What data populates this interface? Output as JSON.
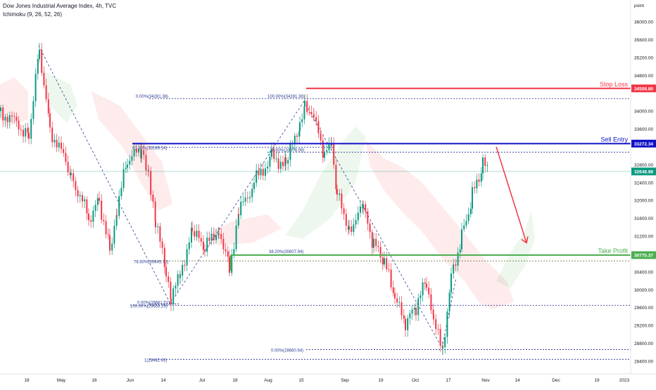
{
  "header": {
    "title": "Dow Jones Industrial Average Index, 4h, TVC",
    "indicator": "Ichimoku (9, 26, 52, 26)"
  },
  "chart_data": {
    "type": "candlestick",
    "price_axis": {
      "unit_label": "point",
      "ticks": [
        28400,
        28800,
        29200,
        29600,
        30000,
        30400,
        31200,
        31600,
        32000,
        32400,
        32800,
        33600,
        34000,
        34800,
        35200,
        35600,
        36000
      ],
      "tick_labels": [
        "28400.00",
        "28800.00",
        "29200.00",
        "29600.00",
        "30000.00",
        "30400.00",
        "31200.00",
        "31600.00",
        "32000.00",
        "32400.00",
        "32800.00",
        "33600.00",
        "34000.00",
        "34800.00",
        "35200.00",
        "35600.00",
        "36000.00"
      ],
      "ylim": [
        28200,
        36300
      ]
    },
    "time_axis": {
      "labels": [
        "18",
        "May",
        "16",
        "Jun",
        "14",
        "Jul",
        "18",
        "Aug",
        "15",
        "Sep",
        "19",
        "Oct",
        "17",
        "Nov",
        "14",
        "Dec",
        "19",
        "2023"
      ]
    },
    "levels": [
      {
        "name": "Stop Loss",
        "price": 34508.8,
        "label": "34508.80",
        "color": "#f23645"
      },
      {
        "name": "Sell Entry",
        "price": 33272.34,
        "label": "33272.34",
        "color": "#1010c8"
      },
      {
        "name": "Take Profit",
        "price": 30775.37,
        "label": "30775.37",
        "color": "#4caf50"
      },
      {
        "name": "",
        "price": 32648.88,
        "label": "32648.88",
        "color": "#089981"
      }
    ],
    "fib_labels": [
      {
        "text": "0.00%(34281.36)",
        "price": 34281.36
      },
      {
        "text": "61.80%(33189.14)",
        "price": 33189.14
      },
      {
        "text": "78.60%(30645.70)",
        "price": 30645.7
      },
      {
        "text": "0.00%(29681.51)",
        "price": 29681.51
      },
      {
        "text": "100.00%(29653.29)",
        "price": 29653.29
      },
      {
        "text": "1(28442.43)",
        "price": 28442.43
      },
      {
        "text": "100.00%(34281.36)",
        "price": 34281.36
      },
      {
        "text": "78.60%(33078.59)",
        "price": 33078.59
      },
      {
        "text": "38.20%(30807.94)",
        "price": 30807.94
      },
      {
        "text": "0.00%(28660.94)",
        "price": 28660.94
      }
    ],
    "price_path": [
      [
        0,
        34000
      ],
      [
        40,
        33500
      ],
      [
        55,
        35400
      ],
      [
        70,
        33600
      ],
      [
        100,
        32600
      ],
      [
        125,
        31600
      ],
      [
        140,
        32000
      ],
      [
        155,
        30900
      ],
      [
        165,
        31800
      ],
      [
        180,
        32900
      ],
      [
        200,
        33100
      ],
      [
        210,
        32700
      ],
      [
        220,
        31500
      ],
      [
        235,
        30400
      ],
      [
        242,
        29700
      ],
      [
        255,
        30400
      ],
      [
        272,
        31300
      ],
      [
        290,
        30900
      ],
      [
        310,
        31400
      ],
      [
        325,
        30500
      ],
      [
        338,
        31700
      ],
      [
        360,
        32400
      ],
      [
        385,
        33000
      ],
      [
        405,
        32800
      ],
      [
        425,
        33700
      ],
      [
        432,
        34250
      ],
      [
        445,
        33800
      ],
      [
        460,
        33000
      ],
      [
        470,
        33200
      ],
      [
        478,
        32100
      ],
      [
        495,
        31400
      ],
      [
        515,
        31800
      ],
      [
        530,
        31000
      ],
      [
        545,
        30600
      ],
      [
        560,
        29800
      ],
      [
        575,
        29200
      ],
      [
        590,
        29600
      ],
      [
        605,
        30200
      ],
      [
        615,
        29200
      ],
      [
        628,
        28700
      ],
      [
        640,
        30300
      ],
      [
        655,
        31200
      ],
      [
        670,
        32100
      ],
      [
        685,
        32800
      ],
      [
        692,
        32650
      ]
    ],
    "forecast_arrow": [
      [
        705,
        33200
      ],
      [
        748,
        31050
      ]
    ]
  }
}
